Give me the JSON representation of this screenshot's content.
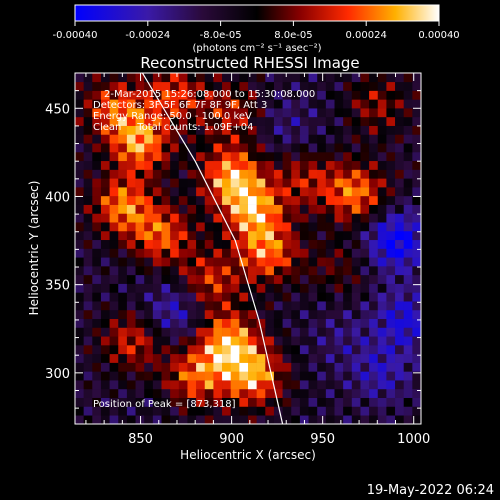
{
  "chart_data": {
    "type": "heatmap",
    "title": "Reconstructed RHESSI Image",
    "xlabel": "Heliocentric X (arcsec)",
    "ylabel": "Heliocentric Y (arcsec)",
    "xlim": [
      814,
      1004
    ],
    "ylim": [
      271,
      470
    ],
    "xticks": [
      850,
      900,
      950,
      1000
    ],
    "yticks": [
      300,
      350,
      400,
      450
    ],
    "colorbar": {
      "min": -0.0004,
      "max": 0.0004,
      "ticks": [
        {
          "value": -0.0004,
          "label": "-0.00040"
        },
        {
          "value": -0.00024,
          "label": "-0.00024"
        },
        {
          "value": -8e-05,
          "label": "-8.0e-05"
        },
        {
          "value": 8e-05,
          "label": "8.0e-05"
        },
        {
          "value": 0.00024,
          "label": "0.00024"
        },
        {
          "value": 0.0004,
          "label": "0.00040"
        }
      ],
      "units_label": "(photons cm⁻² s⁻¹ asec⁻²)"
    },
    "annotations": [
      "2-Mar-2015 15:26:08.000 to 15:30:08.000",
      "Detectors: 3F 5F 6F 7F 8F 9F, Att 3",
      "Energy Range: 50.0 - 100.0 keV",
      "Clean     Total counts: 1.09E+04"
    ],
    "peak_label": "Position of Peak = [873,318]",
    "limb_points": [
      [
        851,
        470
      ],
      [
        880,
        420
      ],
      [
        902,
        375
      ],
      [
        915,
        330
      ],
      [
        928,
        271
      ]
    ],
    "sources": [
      {
        "x": 835,
        "y": 450,
        "value": 0.00028
      },
      {
        "x": 850,
        "y": 430,
        "value": 0.00036
      },
      {
        "x": 840,
        "y": 395,
        "value": 0.00034
      },
      {
        "x": 862,
        "y": 378,
        "value": 0.0003
      },
      {
        "x": 900,
        "y": 412,
        "value": 0.00038
      },
      {
        "x": 912,
        "y": 392,
        "value": 0.00036
      },
      {
        "x": 920,
        "y": 368,
        "value": 0.00032
      },
      {
        "x": 888,
        "y": 352,
        "value": 0.00026
      },
      {
        "x": 898,
        "y": 318,
        "value": 0.00039
      },
      {
        "x": 912,
        "y": 298,
        "value": 0.00037
      },
      {
        "x": 880,
        "y": 298,
        "value": 0.0003
      },
      {
        "x": 845,
        "y": 318,
        "value": 0.00024
      },
      {
        "x": 868,
        "y": 458,
        "value": 0.00026
      },
      {
        "x": 900,
        "y": 448,
        "value": 0.00022
      },
      {
        "x": 968,
        "y": 402,
        "value": 0.00034
      },
      {
        "x": 940,
        "y": 410,
        "value": 0.0002
      },
      {
        "x": 980,
        "y": 452,
        "value": 0.00018
      },
      {
        "x": 958,
        "y": 360,
        "value": 0.00012
      },
      {
        "x": 990,
        "y": 375,
        "value": -0.0003
      },
      {
        "x": 982,
        "y": 300,
        "value": -0.00016
      },
      {
        "x": 995,
        "y": 330,
        "value": -0.00022
      },
      {
        "x": 870,
        "y": 335,
        "value": -0.0002
      },
      {
        "x": 960,
        "y": 320,
        "value": -8e-05
      },
      {
        "x": 930,
        "y": 440,
        "value": -0.0001
      }
    ]
  },
  "footer": {
    "date": "19-May-2022 06:24"
  }
}
